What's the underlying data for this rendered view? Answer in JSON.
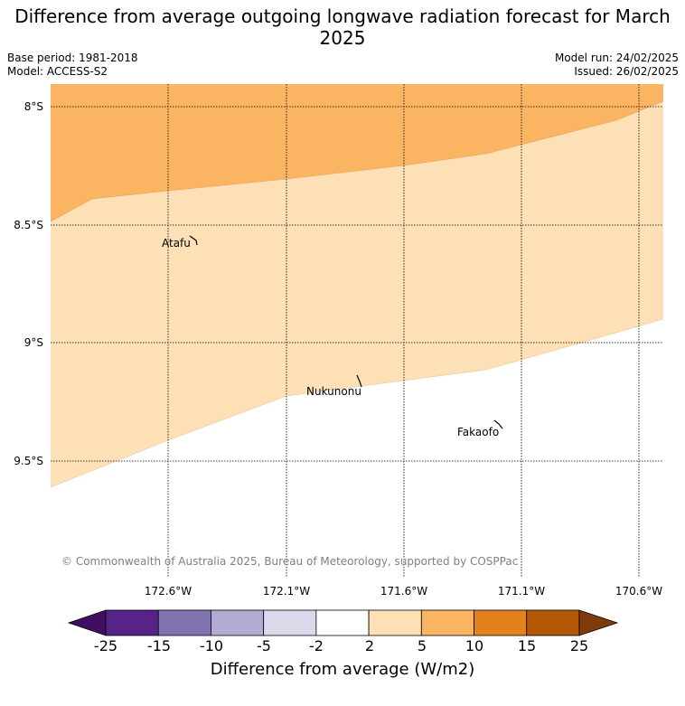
{
  "title": "Difference from average outgoing longwave radiation forecast for March 2025",
  "base_period": "Base period: 1981-2018",
  "model": "Model: ACCESS-S2",
  "model_run": "Model run: 24/02/2025",
  "issued": "Issued: 26/02/2025",
  "latitude_labels": [
    "8°S",
    "8.5°S",
    "9°S",
    "9.5°S"
  ],
  "longitude_labels": [
    "172.6°W",
    "172.1°W",
    "171.6°W",
    "171.1°W",
    "170.6°W"
  ],
  "places": [
    "Atafu",
    "Nukunonu",
    "Fakaofo"
  ],
  "copyright": "© Commonwealth of Australia 2025, Bureau of Meteorology, supported by COSPPac",
  "colorbar": {
    "label": "Difference from average (W/m2)",
    "ticks": [
      "-25",
      "-15",
      "-10",
      "-5",
      "-2",
      "2",
      "5",
      "10",
      "15",
      "25"
    ],
    "colors": [
      "#3f0f63",
      "#582388",
      "#8273b0",
      "#b2abd3",
      "#d9d9eb",
      "#ffffff",
      "#fde0b6",
      "#fbb461",
      "#e1821d",
      "#b35807",
      "#7f3b08"
    ]
  },
  "map_fill": {
    "band_5_10_color": "#fbb461",
    "band_2_5_color": "#fde0b6",
    "band_neutral_color": "#ffffff"
  }
}
